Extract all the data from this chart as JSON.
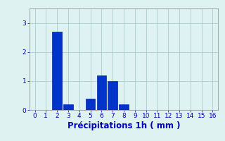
{
  "categories": [
    0,
    1,
    2,
    3,
    4,
    5,
    6,
    7,
    8,
    9,
    10,
    11,
    12,
    13,
    14,
    15,
    16
  ],
  "values": [
    0,
    0,
    2.7,
    0.2,
    0,
    0.4,
    1.2,
    1.0,
    0.2,
    0,
    0,
    0,
    0,
    0,
    0,
    0,
    0
  ],
  "bar_color": "#0033cc",
  "bar_edge_color": "#0022aa",
  "xlabel": "Précipitations 1h ( mm )",
  "ylim": [
    0,
    3.5
  ],
  "xlim": [
    -0.5,
    16.5
  ],
  "yticks": [
    0,
    1,
    2,
    3
  ],
  "xticks": [
    0,
    1,
    2,
    3,
    4,
    5,
    6,
    7,
    8,
    9,
    10,
    11,
    12,
    13,
    14,
    15,
    16
  ],
  "background_color": "#dff2f2",
  "grid_color": "#aacccc",
  "tick_color": "#0000bb",
  "label_color": "#0000bb",
  "tick_fontsize": 6.5,
  "xlabel_fontsize": 8.5
}
